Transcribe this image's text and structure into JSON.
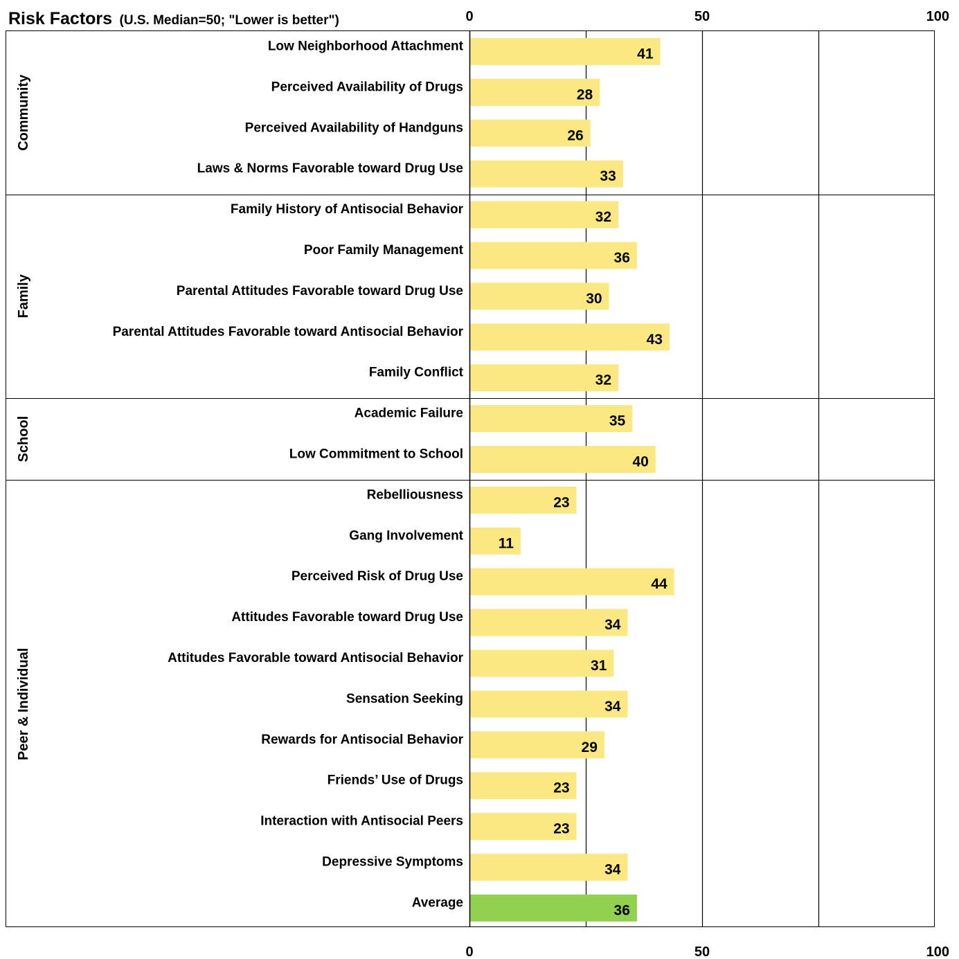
{
  "chart_data": {
    "type": "bar",
    "orientation": "horizontal",
    "title": "Risk Factors",
    "subtitle": "(U.S. Median=50; \"Lower is better\")",
    "xlim": [
      0,
      100
    ],
    "xticks": [
      0,
      50,
      100
    ],
    "xtick_labels": [
      "0",
      "50",
      "100"
    ],
    "grid": true,
    "bar_color": "#fce883",
    "average_color": "#92d050",
    "groups": [
      {
        "name": "Community",
        "items": [
          {
            "label": "Low Neighborhood Attachment",
            "value": 41
          },
          {
            "label": "Perceived Availability of Drugs",
            "value": 28
          },
          {
            "label": "Perceived Availability of Handguns",
            "value": 26
          },
          {
            "label": "Laws & Norms Favorable toward Drug Use",
            "value": 33
          }
        ]
      },
      {
        "name": "Family",
        "items": [
          {
            "label": "Family History of Antisocial Behavior",
            "value": 32
          },
          {
            "label": "Poor Family Management",
            "value": 36
          },
          {
            "label": "Parental Attitudes Favorable toward Drug Use",
            "value": 30
          },
          {
            "label": "Parental Attitudes Favorable toward Antisocial Behavior",
            "value": 43
          },
          {
            "label": "Family Conflict",
            "value": 32
          }
        ]
      },
      {
        "name": "School",
        "items": [
          {
            "label": "Academic Failure",
            "value": 35
          },
          {
            "label": "Low Commitment to School",
            "value": 40
          }
        ]
      },
      {
        "name": "Peer & Individual",
        "items": [
          {
            "label": "Rebelliousness",
            "value": 23
          },
          {
            "label": "Gang Involvement",
            "value": 11
          },
          {
            "label": "Perceived Risk of Drug Use",
            "value": 44
          },
          {
            "label": "Attitudes Favorable toward Drug Use",
            "value": 34
          },
          {
            "label": "Attitudes Favorable toward Antisocial Behavior",
            "value": 31
          },
          {
            "label": "Sensation Seeking",
            "value": 34
          },
          {
            "label": "Rewards for Antisocial Behavior",
            "value": 29
          },
          {
            "label": "Friends’ Use of  Drugs",
            "value": 23
          },
          {
            "label": "Interaction with Antisocial Peers",
            "value": 23
          },
          {
            "label": "Depressive Symptoms",
            "value": 34
          },
          {
            "label": "Average",
            "value": 36,
            "highlight": true
          }
        ]
      }
    ]
  }
}
